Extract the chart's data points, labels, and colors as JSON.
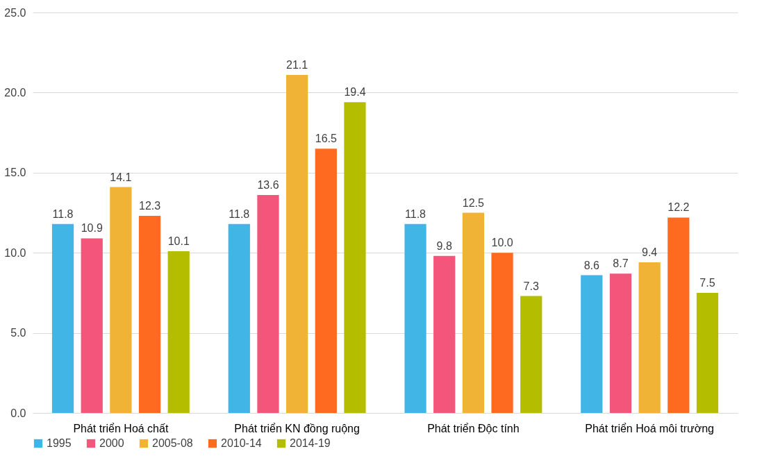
{
  "chart_data": {
    "type": "bar",
    "categories": [
      "Phát triển Hoá chất",
      "Phát triển KN đồng ruộng",
      "Phát triển Độc tính",
      "Phát triển Hoá môi trường"
    ],
    "series": [
      {
        "name": "1995",
        "color": "#41b6e6",
        "values": [
          11.8,
          11.8,
          11.8,
          8.6
        ],
        "value_labels": [
          "11.8",
          "11.8",
          "11.8",
          "8.6"
        ]
      },
      {
        "name": "2000",
        "color": "#f4557a",
        "values": [
          10.9,
          13.6,
          9.8,
          8.7
        ],
        "value_labels": [
          "10.9",
          "13.6",
          "9.8",
          "8.7"
        ]
      },
      {
        "name": "2005-08",
        "color": "#f0b335",
        "values": [
          14.1,
          21.1,
          12.5,
          9.4
        ],
        "value_labels": [
          "14.1",
          "21.1",
          "12.5",
          "9.4"
        ]
      },
      {
        "name": "2010-14",
        "color": "#fd6a20",
        "values": [
          12.3,
          16.5,
          10.0,
          12.2
        ],
        "value_labels": [
          "12.3",
          "16.5",
          "10.0",
          "12.2"
        ]
      },
      {
        "name": "2014-19",
        "color": "#b5bd00",
        "values": [
          10.1,
          19.4,
          7.3,
          7.5
        ],
        "value_labels": [
          "10.1",
          "19.4",
          "7.3",
          "7.5"
        ]
      }
    ],
    "ylim": [
      0,
      25
    ],
    "yticks": [
      {
        "value": 0,
        "label": "0.0"
      },
      {
        "value": 5,
        "label": "5.0"
      },
      {
        "value": 10,
        "label": "10.0"
      },
      {
        "value": 15,
        "label": "15.0"
      },
      {
        "value": 20,
        "label": "20.0"
      },
      {
        "value": 25,
        "label": "25.0"
      }
    ],
    "grid": "y",
    "legend": "bottom"
  }
}
